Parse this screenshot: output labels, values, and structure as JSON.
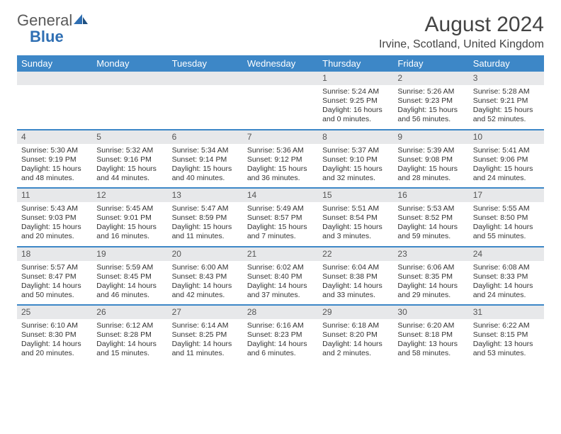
{
  "logo": {
    "general": "General",
    "blue": "Blue"
  },
  "title": "August 2024",
  "location": "Irvine, Scotland, United Kingdom",
  "colors": {
    "header_bg": "#3d87c7",
    "header_text": "#ffffff",
    "daynum_bg": "#e7e8ea",
    "text": "#333333",
    "logo_gray": "#5a5a5a",
    "logo_blue": "#2f6fb3"
  },
  "days_of_week": [
    "Sunday",
    "Monday",
    "Tuesday",
    "Wednesday",
    "Thursday",
    "Friday",
    "Saturday"
  ],
  "weeks": [
    [
      null,
      null,
      null,
      null,
      {
        "n": "1",
        "sr": "Sunrise: 5:24 AM",
        "ss": "Sunset: 9:25 PM",
        "dl": "Daylight: 16 hours and 0 minutes."
      },
      {
        "n": "2",
        "sr": "Sunrise: 5:26 AM",
        "ss": "Sunset: 9:23 PM",
        "dl": "Daylight: 15 hours and 56 minutes."
      },
      {
        "n": "3",
        "sr": "Sunrise: 5:28 AM",
        "ss": "Sunset: 9:21 PM",
        "dl": "Daylight: 15 hours and 52 minutes."
      }
    ],
    [
      {
        "n": "4",
        "sr": "Sunrise: 5:30 AM",
        "ss": "Sunset: 9:19 PM",
        "dl": "Daylight: 15 hours and 48 minutes."
      },
      {
        "n": "5",
        "sr": "Sunrise: 5:32 AM",
        "ss": "Sunset: 9:16 PM",
        "dl": "Daylight: 15 hours and 44 minutes."
      },
      {
        "n": "6",
        "sr": "Sunrise: 5:34 AM",
        "ss": "Sunset: 9:14 PM",
        "dl": "Daylight: 15 hours and 40 minutes."
      },
      {
        "n": "7",
        "sr": "Sunrise: 5:36 AM",
        "ss": "Sunset: 9:12 PM",
        "dl": "Daylight: 15 hours and 36 minutes."
      },
      {
        "n": "8",
        "sr": "Sunrise: 5:37 AM",
        "ss": "Sunset: 9:10 PM",
        "dl": "Daylight: 15 hours and 32 minutes."
      },
      {
        "n": "9",
        "sr": "Sunrise: 5:39 AM",
        "ss": "Sunset: 9:08 PM",
        "dl": "Daylight: 15 hours and 28 minutes."
      },
      {
        "n": "10",
        "sr": "Sunrise: 5:41 AM",
        "ss": "Sunset: 9:06 PM",
        "dl": "Daylight: 15 hours and 24 minutes."
      }
    ],
    [
      {
        "n": "11",
        "sr": "Sunrise: 5:43 AM",
        "ss": "Sunset: 9:03 PM",
        "dl": "Daylight: 15 hours and 20 minutes."
      },
      {
        "n": "12",
        "sr": "Sunrise: 5:45 AM",
        "ss": "Sunset: 9:01 PM",
        "dl": "Daylight: 15 hours and 16 minutes."
      },
      {
        "n": "13",
        "sr": "Sunrise: 5:47 AM",
        "ss": "Sunset: 8:59 PM",
        "dl": "Daylight: 15 hours and 11 minutes."
      },
      {
        "n": "14",
        "sr": "Sunrise: 5:49 AM",
        "ss": "Sunset: 8:57 PM",
        "dl": "Daylight: 15 hours and 7 minutes."
      },
      {
        "n": "15",
        "sr": "Sunrise: 5:51 AM",
        "ss": "Sunset: 8:54 PM",
        "dl": "Daylight: 15 hours and 3 minutes."
      },
      {
        "n": "16",
        "sr": "Sunrise: 5:53 AM",
        "ss": "Sunset: 8:52 PM",
        "dl": "Daylight: 14 hours and 59 minutes."
      },
      {
        "n": "17",
        "sr": "Sunrise: 5:55 AM",
        "ss": "Sunset: 8:50 PM",
        "dl": "Daylight: 14 hours and 55 minutes."
      }
    ],
    [
      {
        "n": "18",
        "sr": "Sunrise: 5:57 AM",
        "ss": "Sunset: 8:47 PM",
        "dl": "Daylight: 14 hours and 50 minutes."
      },
      {
        "n": "19",
        "sr": "Sunrise: 5:59 AM",
        "ss": "Sunset: 8:45 PM",
        "dl": "Daylight: 14 hours and 46 minutes."
      },
      {
        "n": "20",
        "sr": "Sunrise: 6:00 AM",
        "ss": "Sunset: 8:43 PM",
        "dl": "Daylight: 14 hours and 42 minutes."
      },
      {
        "n": "21",
        "sr": "Sunrise: 6:02 AM",
        "ss": "Sunset: 8:40 PM",
        "dl": "Daylight: 14 hours and 37 minutes."
      },
      {
        "n": "22",
        "sr": "Sunrise: 6:04 AM",
        "ss": "Sunset: 8:38 PM",
        "dl": "Daylight: 14 hours and 33 minutes."
      },
      {
        "n": "23",
        "sr": "Sunrise: 6:06 AM",
        "ss": "Sunset: 8:35 PM",
        "dl": "Daylight: 14 hours and 29 minutes."
      },
      {
        "n": "24",
        "sr": "Sunrise: 6:08 AM",
        "ss": "Sunset: 8:33 PM",
        "dl": "Daylight: 14 hours and 24 minutes."
      }
    ],
    [
      {
        "n": "25",
        "sr": "Sunrise: 6:10 AM",
        "ss": "Sunset: 8:30 PM",
        "dl": "Daylight: 14 hours and 20 minutes."
      },
      {
        "n": "26",
        "sr": "Sunrise: 6:12 AM",
        "ss": "Sunset: 8:28 PM",
        "dl": "Daylight: 14 hours and 15 minutes."
      },
      {
        "n": "27",
        "sr": "Sunrise: 6:14 AM",
        "ss": "Sunset: 8:25 PM",
        "dl": "Daylight: 14 hours and 11 minutes."
      },
      {
        "n": "28",
        "sr": "Sunrise: 6:16 AM",
        "ss": "Sunset: 8:23 PM",
        "dl": "Daylight: 14 hours and 6 minutes."
      },
      {
        "n": "29",
        "sr": "Sunrise: 6:18 AM",
        "ss": "Sunset: 8:20 PM",
        "dl": "Daylight: 14 hours and 2 minutes."
      },
      {
        "n": "30",
        "sr": "Sunrise: 6:20 AM",
        "ss": "Sunset: 8:18 PM",
        "dl": "Daylight: 13 hours and 58 minutes."
      },
      {
        "n": "31",
        "sr": "Sunrise: 6:22 AM",
        "ss": "Sunset: 8:15 PM",
        "dl": "Daylight: 13 hours and 53 minutes."
      }
    ]
  ]
}
